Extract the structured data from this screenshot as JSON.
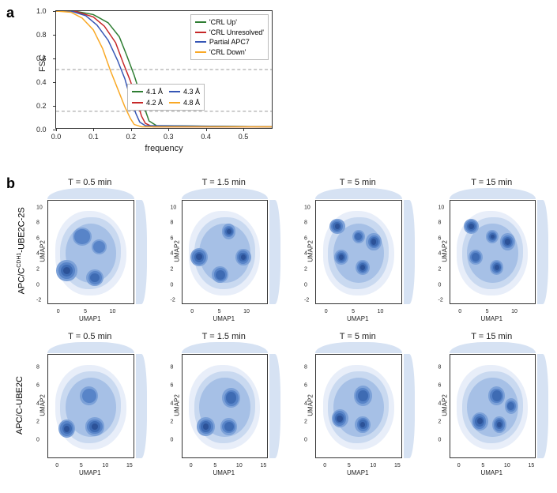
{
  "panels": {
    "a": "a",
    "b": "b"
  },
  "fsc": {
    "type": "line",
    "xlabel": "frequency",
    "ylabel": "FSC",
    "xlim": [
      0,
      0.58
    ],
    "ylim": [
      0,
      1.0
    ],
    "xticks": [
      0.0,
      0.1,
      0.2,
      0.3,
      0.4,
      0.5
    ],
    "xtick_labels": [
      "0.0",
      "0.1",
      "0.2",
      "0.3",
      "0.4",
      "0.5"
    ],
    "yticks": [
      0.0,
      0.2,
      0.4,
      0.6,
      0.8,
      1.0
    ],
    "ytick_labels": [
      "0.0",
      "0.2",
      "0.4",
      "0.6",
      "0.8",
      "1.0"
    ],
    "hlines": [
      0.5,
      0.143
    ],
    "hline_color": "#999999",
    "hline_dash": "4,3",
    "series": [
      {
        "label": "'CRL Up'",
        "color": "#2e7d32",
        "points": [
          [
            0.0,
            1.0
          ],
          [
            0.05,
            1.0
          ],
          [
            0.1,
            0.97
          ],
          [
            0.14,
            0.9
          ],
          [
            0.17,
            0.78
          ],
          [
            0.19,
            0.62
          ],
          [
            0.21,
            0.45
          ],
          [
            0.225,
            0.3
          ],
          [
            0.24,
            0.15
          ],
          [
            0.25,
            0.06
          ],
          [
            0.27,
            0.02
          ],
          [
            0.58,
            0.01
          ]
        ]
      },
      {
        "label": "'CRL Unresolved'",
        "color": "#c62828",
        "points": [
          [
            0.0,
            1.0
          ],
          [
            0.05,
            1.0
          ],
          [
            0.1,
            0.95
          ],
          [
            0.13,
            0.87
          ],
          [
            0.16,
            0.73
          ],
          [
            0.18,
            0.56
          ],
          [
            0.2,
            0.4
          ],
          [
            0.215,
            0.25
          ],
          [
            0.23,
            0.1
          ],
          [
            0.24,
            0.04
          ],
          [
            0.26,
            0.01
          ],
          [
            0.58,
            0.01
          ]
        ]
      },
      {
        "label": "Partial APC7",
        "color": "#3656b5",
        "points": [
          [
            0.0,
            1.0
          ],
          [
            0.04,
            1.0
          ],
          [
            0.08,
            0.96
          ],
          [
            0.11,
            0.88
          ],
          [
            0.14,
            0.75
          ],
          [
            0.165,
            0.58
          ],
          [
            0.185,
            0.42
          ],
          [
            0.2,
            0.25
          ],
          [
            0.215,
            0.12
          ],
          [
            0.225,
            0.05
          ],
          [
            0.24,
            0.02
          ],
          [
            0.58,
            0.01
          ]
        ]
      },
      {
        "label": "'CRL Down'",
        "color": "#f9a825",
        "points": [
          [
            0.0,
            1.0
          ],
          [
            0.04,
            0.99
          ],
          [
            0.07,
            0.94
          ],
          [
            0.1,
            0.84
          ],
          [
            0.125,
            0.68
          ],
          [
            0.145,
            0.5
          ],
          [
            0.165,
            0.34
          ],
          [
            0.185,
            0.18
          ],
          [
            0.2,
            0.08
          ],
          [
            0.21,
            0.03
          ],
          [
            0.23,
            0.01
          ],
          [
            0.58,
            0.01
          ]
        ]
      }
    ],
    "line_width": 1.5,
    "background_color": "#ffffff",
    "border_color": "#333333",
    "legend1": {
      "position": "top-right"
    },
    "legend2": {
      "position": "center",
      "items": [
        {
          "label": "4.1 Å",
          "color": "#2e7d32"
        },
        {
          "label": "4.3 Å",
          "color": "#3656b5"
        },
        {
          "label": "4.2 Å",
          "color": "#c62828"
        },
        {
          "label": "4.8 Å",
          "color": "#f9a825"
        }
      ]
    },
    "label_fontsize": 11,
    "tick_fontsize": 9
  },
  "umap": {
    "type": "density-2d-with-marginals",
    "rows": [
      {
        "label": "APC/C^CDH1-UBE2C-2S",
        "yticks": [
          -2,
          0,
          2,
          4,
          6,
          8,
          10
        ],
        "ylim": [
          -2.5,
          11
        ]
      },
      {
        "label": "APC/C-UBE2C",
        "yticks": [
          0,
          2,
          4,
          6,
          8
        ],
        "ylim": [
          -2,
          9.5
        ]
      }
    ],
    "cols": [
      {
        "title": "T = 0.5 min"
      },
      {
        "title": "T = 1.5 min"
      },
      {
        "title": "T = 5 min"
      },
      {
        "title": "T = 15 min"
      }
    ],
    "xlabel": "UMAP1",
    "ylabel": "UMAP2",
    "xticks": [
      0,
      5,
      10
    ],
    "xlim": [
      -2,
      14
    ],
    "xticks_row2": [
      0,
      5,
      10,
      15
    ],
    "xlim_row2": [
      -2,
      16
    ],
    "colors": {
      "marginal_fill": "#d6e2f3",
      "density_levels": [
        "#e8eef9",
        "#c9d9f0",
        "#a6c0e6",
        "#7ca1d8",
        "#5884c8",
        "#3e6bb3",
        "#2c5298"
      ],
      "border": "#333333",
      "background": "#ffffff"
    },
    "label_fontsize": 8,
    "tick_fontsize": 7,
    "title_fontsize": 11,
    "cells": [
      [
        {
          "blobs": [
            [
              0.22,
              0.68,
              0.3,
              0.25,
              5
            ],
            [
              0.55,
              0.75,
              0.25,
              0.2,
              4
            ],
            [
              0.6,
              0.45,
              0.22,
              0.18,
              3
            ],
            [
              0.4,
              0.35,
              0.28,
              0.22,
              3
            ]
          ]
        },
        {
          "blobs": [
            [
              0.2,
              0.55,
              0.26,
              0.22,
              5
            ],
            [
              0.55,
              0.3,
              0.2,
              0.18,
              5
            ],
            [
              0.72,
              0.55,
              0.22,
              0.2,
              5
            ],
            [
              0.45,
              0.72,
              0.24,
              0.2,
              4
            ]
          ]
        },
        {
          "blobs": [
            [
              0.25,
              0.25,
              0.22,
              0.18,
              5
            ],
            [
              0.3,
              0.55,
              0.2,
              0.18,
              5
            ],
            [
              0.55,
              0.65,
              0.2,
              0.18,
              5
            ],
            [
              0.68,
              0.4,
              0.22,
              0.2,
              5
            ],
            [
              0.5,
              0.35,
              0.18,
              0.16,
              4
            ]
          ]
        },
        {
          "blobs": [
            [
              0.25,
              0.25,
              0.22,
              0.18,
              5
            ],
            [
              0.3,
              0.55,
              0.2,
              0.18,
              4
            ],
            [
              0.55,
              0.65,
              0.2,
              0.18,
              5
            ],
            [
              0.68,
              0.4,
              0.22,
              0.2,
              5
            ],
            [
              0.5,
              0.35,
              0.18,
              0.16,
              5
            ]
          ]
        }
      ],
      [
        {
          "blobs": [
            [
              0.22,
              0.72,
              0.24,
              0.22,
              5
            ],
            [
              0.55,
              0.7,
              0.28,
              0.22,
              5
            ],
            [
              0.48,
              0.4,
              0.26,
              0.22,
              3
            ]
          ]
        },
        {
          "blobs": [
            [
              0.28,
              0.7,
              0.26,
              0.22,
              5
            ],
            [
              0.55,
              0.7,
              0.24,
              0.2,
              4
            ],
            [
              0.58,
              0.42,
              0.26,
              0.24,
              4
            ]
          ]
        },
        {
          "blobs": [
            [
              0.28,
              0.62,
              0.24,
              0.22,
              5
            ],
            [
              0.55,
              0.68,
              0.22,
              0.2,
              5
            ],
            [
              0.55,
              0.4,
              0.26,
              0.24,
              4
            ]
          ]
        },
        {
          "blobs": [
            [
              0.35,
              0.65,
              0.24,
              0.22,
              5
            ],
            [
              0.58,
              0.68,
              0.2,
              0.2,
              5
            ],
            [
              0.55,
              0.4,
              0.24,
              0.22,
              4
            ],
            [
              0.72,
              0.5,
              0.18,
              0.18,
              4
            ]
          ]
        }
      ]
    ]
  }
}
